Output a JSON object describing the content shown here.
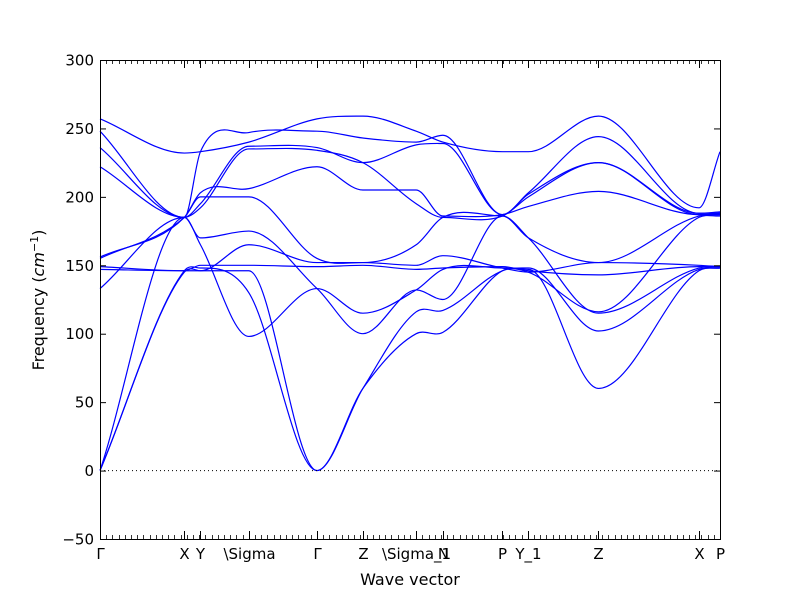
{
  "chart_data": {
    "type": "line",
    "xlabel": "Wave vector",
    "ylabel": "Frequency ($cm^{-1}$)",
    "ylim": [
      -50,
      300
    ],
    "yticks": [
      -50,
      0,
      50,
      100,
      150,
      200,
      250,
      300
    ],
    "xlim": [
      0,
      100
    ],
    "grid": false,
    "line_color": "#0000ff",
    "zero_line": 0,
    "ticks": [
      {
        "label": "Γ",
        "x": 0
      },
      {
        "label": "X",
        "x": 13.6
      },
      {
        "label": "Y",
        "x": 16.2
      },
      {
        "label": "\\Sigma",
        "x": 24.0
      },
      {
        "label": "Γ",
        "x": 35.0
      },
      {
        "label": "Z",
        "x": 42.4
      },
      {
        "label": "\\Sigma_1",
        "x": 51.0
      },
      {
        "label": "N",
        "x": 55.3
      },
      {
        "label": "P",
        "x": 64.9
      },
      {
        "label": "Y_1",
        "x": 69.1
      },
      {
        "label": "Z",
        "x": 80.4
      },
      {
        "label": "X",
        "x": 96.6
      },
      {
        "label": "P",
        "x": 100
      }
    ],
    "series": [
      {
        "x": [
          0,
          13.6,
          16.2,
          24,
          35,
          42.4,
          51,
          55.3,
          64.9,
          69.1,
          80.4,
          96.6,
          100
        ],
        "values": [
          0,
          145,
          146,
          146,
          0,
          60,
          100,
          101,
          146,
          147,
          60,
          146,
          148
        ]
      },
      {
        "x": [
          0,
          13.6,
          16.2,
          24,
          35,
          42.4,
          51,
          55.3,
          64.9,
          69.1,
          80.4,
          96.6,
          100
        ],
        "values": [
          0,
          146,
          148,
          130,
          0,
          60,
          116,
          117,
          146,
          148,
          102,
          147,
          148
        ]
      },
      {
        "x": [
          0,
          13.6,
          16.2,
          24,
          35,
          42.4,
          51,
          55.3,
          64.9,
          69.1,
          80.4,
          96.6,
          100
        ],
        "values": [
          0,
          185,
          170,
          175,
          133,
          100,
          132,
          125,
          186,
          170,
          115,
          148,
          149
        ]
      },
      {
        "x": [
          0,
          13.6,
          16.2,
          24,
          35,
          42.4,
          51,
          55.3,
          64.9,
          69.1,
          80.4,
          96.6,
          100
        ],
        "values": [
          133,
          185,
          165,
          98,
          133,
          115,
          132,
          147,
          148,
          145,
          116,
          185,
          186
        ]
      },
      {
        "x": [
          0,
          13.6,
          16.2,
          24,
          35,
          42.4,
          51,
          55.3,
          64.9,
          69.1,
          80.4,
          96.6,
          100
        ],
        "values": [
          147,
          146,
          150,
          150,
          149,
          150,
          147,
          148,
          149,
          146,
          143,
          149,
          149
        ]
      },
      {
        "x": [
          0,
          13.6,
          16.2,
          24,
          35,
          42.4,
          51,
          55.3,
          64.9,
          69.1,
          80.4,
          96.6,
          100
        ],
        "values": [
          149,
          146,
          146,
          165,
          152,
          152,
          150,
          157,
          148,
          145,
          152,
          150,
          149
        ]
      },
      {
        "x": [
          0,
          13.6,
          16.2,
          24,
          35,
          42.4,
          51,
          55.3,
          64.9,
          69.1,
          80.4,
          96.6,
          100
        ],
        "values": [
          155,
          185,
          200,
          200,
          155,
          152,
          165,
          185,
          186,
          170,
          152,
          186,
          187
        ]
      },
      {
        "x": [
          0,
          13.6,
          16.2,
          24,
          35,
          42.4,
          51,
          55.3,
          64.9,
          69.1,
          80.4,
          96.6,
          100
        ],
        "values": [
          156,
          185,
          203,
          206,
          222,
          205,
          205,
          186,
          187,
          193,
          204,
          187,
          187
        ]
      },
      {
        "x": [
          0,
          13.6,
          16.2,
          24,
          35,
          42.4,
          51,
          55.3,
          64.9,
          69.1,
          80.4,
          96.6,
          100
        ],
        "values": [
          222,
          185,
          192,
          235,
          234,
          225,
          195,
          185,
          186,
          200,
          225,
          187,
          188
        ]
      },
      {
        "x": [
          0,
          13.6,
          16.2,
          24,
          35,
          42.4,
          51,
          55.3,
          64.9,
          69.1,
          80.4,
          96.6,
          100
        ],
        "values": [
          236,
          185,
          195,
          237,
          236,
          225,
          238,
          239,
          187,
          202,
          225,
          188,
          188
        ]
      },
      {
        "x": [
          0,
          13.6,
          16.2,
          24,
          35,
          42.4,
          51,
          55.3,
          64.9,
          69.1,
          80.4,
          96.6,
          100
        ],
        "values": [
          248,
          185,
          233,
          247,
          248,
          243,
          240,
          245,
          187,
          203,
          244,
          188,
          189
        ]
      },
      {
        "x": [
          0,
          13.6,
          16.2,
          24,
          35,
          42.4,
          51,
          55.3,
          64.9,
          69.1,
          80.4,
          96.6,
          100
        ],
        "values": [
          257,
          232,
          233,
          240,
          257,
          259,
          248,
          240,
          233,
          233,
          259,
          192,
          233
        ]
      }
    ]
  }
}
